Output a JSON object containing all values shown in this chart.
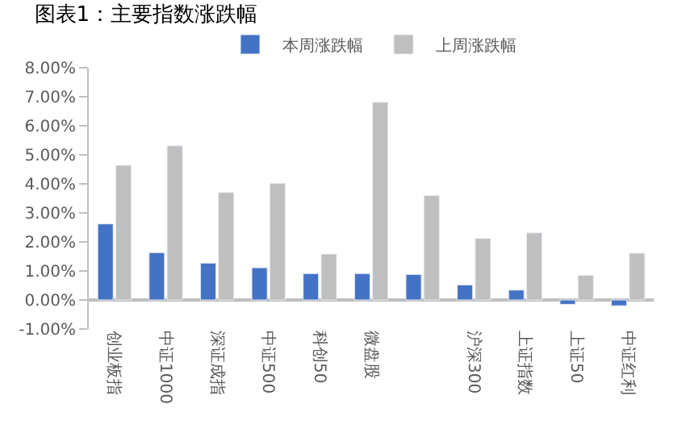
{
  "chart_data": {
    "type": "bar",
    "title": "图表1：主要指数涨跌幅",
    "categories": [
      "创业板指",
      "中证1000",
      "深证成指",
      "中证500",
      "科创50",
      "微盘股",
      null,
      "沪深300",
      "上证指数",
      "上证50",
      "中证红利"
    ],
    "series": [
      {
        "name": "本周涨跌幅",
        "color": "#4472c4",
        "values": [
          2.62,
          1.63,
          1.27,
          1.11,
          0.91,
          0.91,
          0.88,
          0.52,
          0.34,
          -0.15,
          -0.2
        ]
      },
      {
        "name": "上周涨跌幅",
        "color": "#bfbfbf",
        "values": [
          4.64,
          5.31,
          3.7,
          4.02,
          1.58,
          6.81,
          3.6,
          2.12,
          2.31,
          0.85,
          1.61
        ]
      }
    ],
    "ylim": [
      -1,
      8
    ],
    "yticks": [
      {
        "value": -1,
        "label": "-1.00%"
      },
      {
        "value": 0,
        "label": "0.00%"
      },
      {
        "value": 1,
        "label": "1.00%"
      },
      {
        "value": 2,
        "label": "2.00%"
      },
      {
        "value": 3,
        "label": "3.00%"
      },
      {
        "value": 4,
        "label": "4.00%"
      },
      {
        "value": 5,
        "label": "5.00%"
      },
      {
        "value": 6,
        "label": "6.00%"
      },
      {
        "value": 7,
        "label": "7.00%"
      },
      {
        "value": 8,
        "label": "8.00%"
      }
    ],
    "legend": "top",
    "grid": false
  }
}
